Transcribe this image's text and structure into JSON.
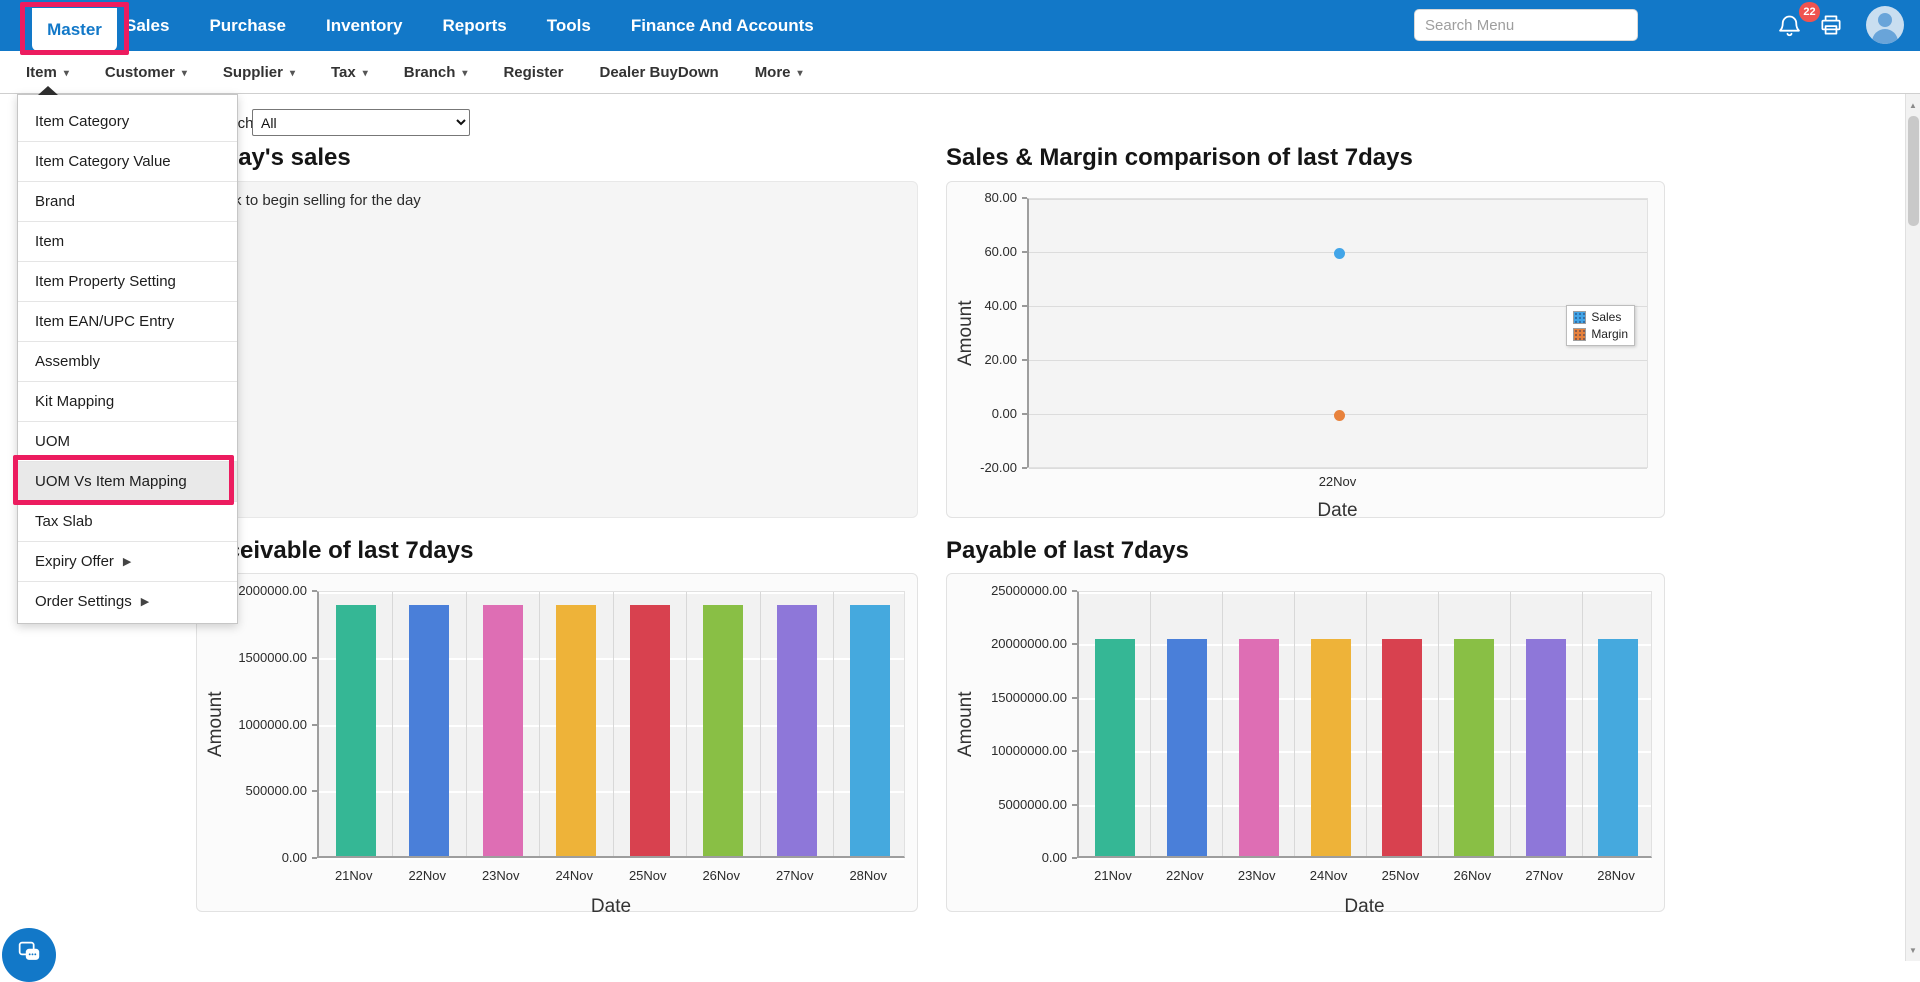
{
  "colors": {
    "topbar_blue": "#1278c8",
    "annotation_red": "#ec1c5f",
    "badge_red": "#ef5350",
    "menu_highlight": "#e9e9e9"
  },
  "topnav": {
    "items": [
      "Master",
      "Sales",
      "Purchase",
      "Inventory",
      "Reports",
      "Tools",
      "Finance And Accounts"
    ],
    "active_item": "Master",
    "search_placeholder": "Search Menu",
    "notification_count": "22"
  },
  "subnav": {
    "items": [
      {
        "label": "Item",
        "has_dropdown": true,
        "open": true
      },
      {
        "label": "Customer",
        "has_dropdown": true
      },
      {
        "label": "Supplier",
        "has_dropdown": true
      },
      {
        "label": "Tax",
        "has_dropdown": true
      },
      {
        "label": "Branch",
        "has_dropdown": true
      },
      {
        "label": "Register",
        "has_dropdown": false
      },
      {
        "label": "Dealer BuyDown",
        "has_dropdown": false
      },
      {
        "label": "More",
        "has_dropdown": true
      }
    ]
  },
  "item_menu": [
    {
      "label": "Item Category"
    },
    {
      "label": "Item Category Value"
    },
    {
      "label": "Brand"
    },
    {
      "label": "Item"
    },
    {
      "label": "Item Property Setting"
    },
    {
      "label": "Item EAN/UPC Entry"
    },
    {
      "label": "Assembly"
    },
    {
      "label": "Kit Mapping"
    },
    {
      "label": "UOM"
    },
    {
      "label": "UOM Vs Item Mapping",
      "highlighted": true,
      "annotated": true
    },
    {
      "label": "Tax Slab"
    },
    {
      "label": "Expiry Offer",
      "has_submenu": true
    },
    {
      "label": "Order Settings",
      "has_submenu": true
    }
  ],
  "filter": {
    "label": "Branch",
    "value": "All"
  },
  "today_panel": {
    "title": "Today's sales",
    "message": "Click to begin selling for the day"
  },
  "chart_data": [
    {
      "id": "sales_margin",
      "type": "scatter",
      "title": "Sales & Margin comparison of last 7days",
      "x": [
        "22Nov"
      ],
      "series": [
        {
          "name": "Sales",
          "values": [
            60
          ],
          "color": "#42a5e8"
        },
        {
          "name": "Margin",
          "values": [
            0
          ],
          "color": "#e8823c"
        }
      ],
      "xlabel": "Date",
      "ylabel": "Amount",
      "ylim": [
        -20,
        80
      ],
      "yticks": [
        "80.00",
        "60.00",
        "40.00",
        "20.00",
        "0.00",
        "-20.00"
      ],
      "grid": true,
      "legend_position": "right"
    },
    {
      "id": "receivable",
      "type": "bar",
      "title": "Receivable of last 7days",
      "categories": [
        "21Nov",
        "22Nov",
        "23Nov",
        "24Nov",
        "25Nov",
        "26Nov",
        "27Nov",
        "28Nov"
      ],
      "values": [
        1880000,
        1880000,
        1880000,
        1880000,
        1880000,
        1880000,
        1880000,
        1880000
      ],
      "colors": [
        "#35b795",
        "#4a7fd9",
        "#de6eb4",
        "#eeb339",
        "#d8414f",
        "#89bf45",
        "#8e77d9",
        "#45a9de"
      ],
      "xlabel": "Date",
      "ylabel": "Amount",
      "ylim": [
        0,
        2000000
      ],
      "yticks": [
        "2000000.00",
        "1500000.00",
        "1000000.00",
        "500000.00",
        "0.00"
      ],
      "grid": true
    },
    {
      "id": "payable",
      "type": "bar",
      "title": "Payable of last 7days",
      "categories": [
        "21Nov",
        "22Nov",
        "23Nov",
        "24Nov",
        "25Nov",
        "26Nov",
        "27Nov",
        "28Nov"
      ],
      "values": [
        20300000,
        20300000,
        20300000,
        20300000,
        20300000,
        20300000,
        20300000,
        20300000
      ],
      "colors": [
        "#35b795",
        "#4a7fd9",
        "#de6eb4",
        "#eeb339",
        "#d8414f",
        "#89bf45",
        "#8e77d9",
        "#45a9de"
      ],
      "xlabel": "Date",
      "ylabel": "Amount",
      "ylim": [
        0,
        25000000
      ],
      "yticks": [
        "25000000.00",
        "20000000.00",
        "15000000.00",
        "10000000.00",
        "5000000.00",
        "0.00"
      ],
      "grid": true
    }
  ]
}
